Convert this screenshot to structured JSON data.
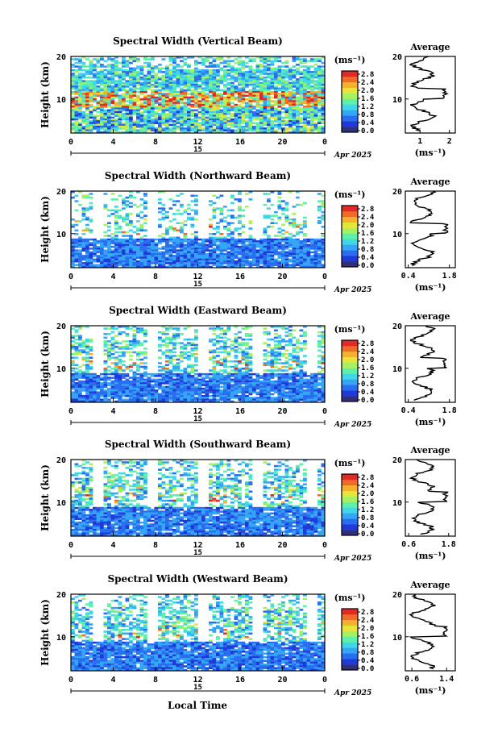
{
  "figure": {
    "x_title": "Local Time"
  },
  "chart_data": [
    {
      "type": "heatmap",
      "title": "Spectral Width (Vertical Beam)",
      "ylabel": "Height (km)",
      "xlabel": "Local Time",
      "x_ticks": [
        "0",
        "4",
        "8",
        "12",
        "16",
        "20",
        "0"
      ],
      "xlim": [
        0,
        24
      ],
      "y_ticks": [
        "20",
        "10"
      ],
      "ylim": [
        2,
        20
      ],
      "date_day": "15",
      "date_label": "Apr 2025",
      "colorbar": {
        "unit": "(ms⁻¹)",
        "ticks": [
          "2.8",
          "2.4",
          "2.0",
          "1.6",
          "1.2",
          "0.8",
          "0.4",
          "0.0"
        ]
      },
      "profile": {
        "title": "Average",
        "xlabel": "(ms⁻¹)",
        "x_ticks": [
          "1",
          "2"
        ],
        "xlim": [
          0.5,
          2.2
        ]
      }
    },
    {
      "type": "heatmap",
      "title": "Spectral Width (Northward Beam)",
      "ylabel": "Height (km)",
      "xlabel": "Local Time",
      "x_ticks": [
        "0",
        "4",
        "8",
        "12",
        "16",
        "20",
        "0"
      ],
      "xlim": [
        0,
        24
      ],
      "y_ticks": [
        "20",
        "10"
      ],
      "ylim": [
        2,
        20
      ],
      "date_day": "15",
      "date_label": "Apr 2025",
      "colorbar": {
        "unit": "(ms⁻¹)",
        "ticks": [
          "2.8",
          "2.4",
          "2.0",
          "1.6",
          "1.2",
          "0.8",
          "0.4",
          "0.0"
        ]
      },
      "profile": {
        "title": "Average",
        "xlabel": "(ms⁻¹)",
        "x_ticks": [
          "0.4",
          "1.8"
        ],
        "xlim": [
          0.3,
          2.0
        ]
      }
    },
    {
      "type": "heatmap",
      "title": "Spectral Width (Eastward Beam)",
      "ylabel": "Height (km)",
      "xlabel": "Local Time",
      "x_ticks": [
        "0",
        "4",
        "8",
        "12",
        "16",
        "20",
        "0"
      ],
      "xlim": [
        0,
        24
      ],
      "y_ticks": [
        "20",
        "10"
      ],
      "ylim": [
        2,
        20
      ],
      "date_day": "15",
      "date_label": "Apr 2025",
      "colorbar": {
        "unit": "(ms⁻¹)",
        "ticks": [
          "2.8",
          "2.4",
          "2.0",
          "1.6",
          "1.2",
          "0.8",
          "0.4",
          "0.0"
        ]
      },
      "profile": {
        "title": "Average",
        "xlabel": "(ms⁻¹)",
        "x_ticks": [
          "0.4",
          "1.8"
        ],
        "xlim": [
          0.3,
          2.0
        ]
      }
    },
    {
      "type": "heatmap",
      "title": "Spectral Width (Southward Beam)",
      "ylabel": "Height (km)",
      "xlabel": "Local Time",
      "x_ticks": [
        "0",
        "4",
        "8",
        "12",
        "16",
        "20",
        "0"
      ],
      "xlim": [
        0,
        24
      ],
      "y_ticks": [
        "20",
        "10"
      ],
      "ylim": [
        2,
        20
      ],
      "date_day": "15",
      "date_label": "Apr 2025",
      "colorbar": {
        "unit": "(ms⁻¹)",
        "ticks": [
          "2.8",
          "2.4",
          "2.0",
          "1.6",
          "1.2",
          "0.8",
          "0.4",
          "0.0"
        ]
      },
      "profile": {
        "title": "Average",
        "xlabel": "(ms⁻¹)",
        "x_ticks": [
          "0.6",
          "1.8"
        ],
        "xlim": [
          0.5,
          2.0
        ]
      }
    },
    {
      "type": "heatmap",
      "title": "Spectral Width (Westward Beam)",
      "ylabel": "Height (km)",
      "xlabel": "Local Time",
      "x_ticks": [
        "0",
        "4",
        "8",
        "12",
        "16",
        "20",
        "0"
      ],
      "xlim": [
        0,
        24
      ],
      "y_ticks": [
        "20",
        "10"
      ],
      "ylim": [
        2,
        20
      ],
      "date_day": "15",
      "date_label": "Apr 2025",
      "colorbar": {
        "unit": "(ms⁻¹)",
        "ticks": [
          "2.8",
          "2.4",
          "2.0",
          "1.6",
          "1.2",
          "0.8",
          "0.4",
          "0.0"
        ]
      },
      "profile": {
        "title": "Average",
        "xlabel": "(ms⁻¹)",
        "x_ticks": [
          "0.6",
          "1.4"
        ],
        "xlim": [
          0.45,
          1.6
        ]
      }
    }
  ],
  "colormap": [
    "#30307a",
    "#1f3ad8",
    "#2a6ef0",
    "#35a5f5",
    "#40d6e6",
    "#5ef0a8",
    "#a6f062",
    "#e6e63a",
    "#f5b02d",
    "#f06a2a",
    "#e02a25"
  ]
}
